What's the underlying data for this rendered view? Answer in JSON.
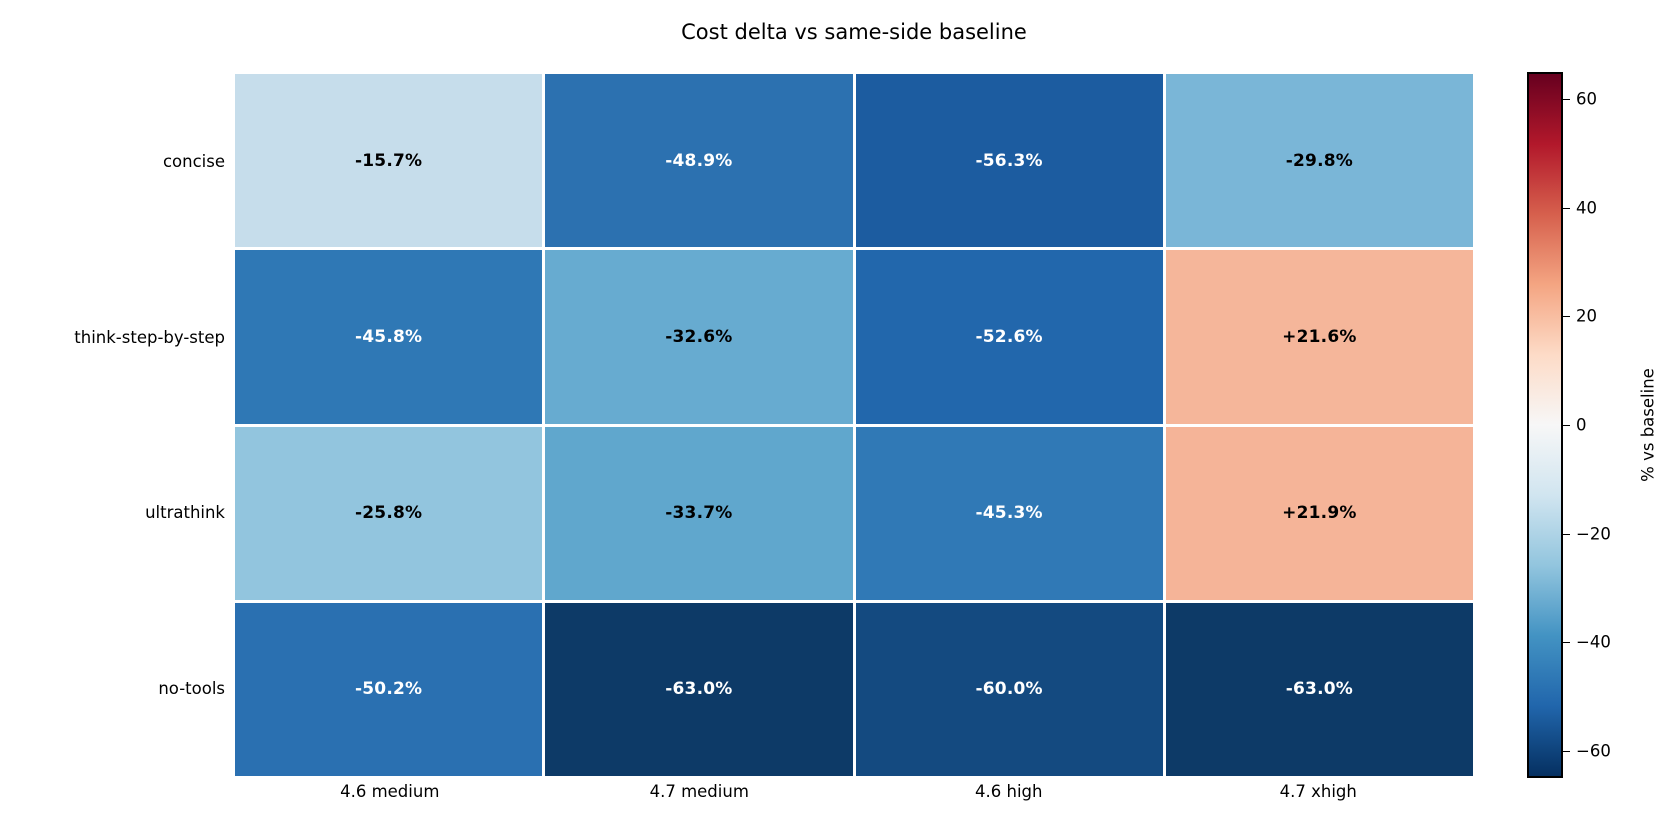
{
  "chart_data": {
    "type": "heatmap",
    "title": "Cost delta vs same-side baseline",
    "colormap": "RdBu_r",
    "rows": [
      "concise",
      "think-step-by-step",
      "ultrathink",
      "no-tools"
    ],
    "columns": [
      "4.6 medium",
      "4.7 medium",
      "4.6 high",
      "4.7 xhigh"
    ],
    "values": [
      [
        -15.7,
        -48.9,
        -56.3,
        -29.8
      ],
      [
        -45.8,
        -32.6,
        -52.6,
        21.6
      ],
      [
        -25.8,
        -33.7,
        -45.3,
        21.9
      ],
      [
        -50.2,
        -63.0,
        -60.0,
        -63.0
      ]
    ],
    "cell_labels": [
      [
        "-15.7%",
        "-48.9%",
        "-56.3%",
        "-29.8%"
      ],
      [
        "-45.8%",
        "-32.6%",
        "-52.6%",
        "+21.6%"
      ],
      [
        "-25.8%",
        "-33.7%",
        "-45.3%",
        "+21.9%"
      ],
      [
        "-50.2%",
        "-63.0%",
        "-60.0%",
        "-63.0%"
      ]
    ],
    "cell_colors": [
      [
        "#c6ddeb",
        "#2c71b0",
        "#1c5ca0",
        "#7ab6d7"
      ],
      [
        "#2f78b5",
        "#67abd0",
        "#2267ac",
        "#f5b69a"
      ],
      [
        "#92c5de",
        "#60a7cd",
        "#3079b6",
        "#f5b498"
      ],
      [
        "#2a70b1",
        "#0d3a67",
        "#144a80",
        "#0d3a67"
      ]
    ],
    "cell_text_colors": [
      [
        "#000000",
        "#ffffff",
        "#ffffff",
        "#000000"
      ],
      [
        "#ffffff",
        "#000000",
        "#ffffff",
        "#000000"
      ],
      [
        "#000000",
        "#000000",
        "#ffffff",
        "#000000"
      ],
      [
        "#ffffff",
        "#ffffff",
        "#ffffff",
        "#ffffff"
      ]
    ],
    "colorbar": {
      "label": "% vs baseline",
      "vmin": -65,
      "vmax": 65,
      "tick_labels": [
        "60",
        "40",
        "20",
        "0",
        "−20",
        "−40",
        "−60"
      ],
      "tick_values": [
        60,
        40,
        20,
        0,
        -20,
        -40,
        -60
      ],
      "gradient_stops_top_to_bottom": [
        "#67001f",
        "#b2182b",
        "#d6604d",
        "#f4a582",
        "#fddbc7",
        "#f7f7f7",
        "#d1e5f0",
        "#92c5de",
        "#4393c3",
        "#2166ac",
        "#053061"
      ]
    },
    "layout": {
      "grid_on": false,
      "legend_position": "right-colorbar"
    }
  }
}
